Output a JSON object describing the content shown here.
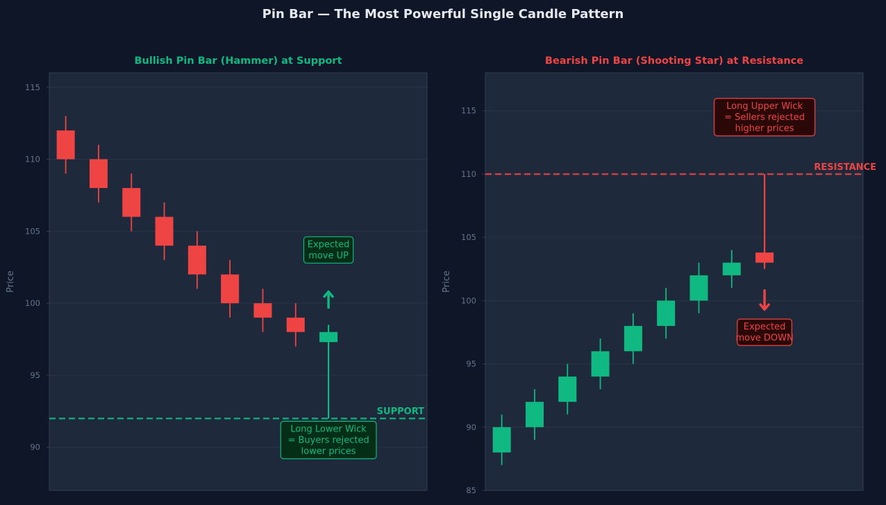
{
  "suptitle": "Pin Bar — The Most Powerful Single Candle Pattern",
  "colors": {
    "background": "#0e1628",
    "panel": "#1e293b",
    "grid": "#2a3548",
    "spine": "#334155",
    "tick": "#64748b",
    "bull": "#10b981",
    "bear": "#ef4444",
    "bull_box_fill": "#052e16",
    "bear_box_fill": "#2a0808"
  },
  "chart_data": [
    {
      "type": "candlestick",
      "title": "Bullish Pin Bar (Hammer) at Support",
      "ylabel": "Price",
      "ylim": [
        87,
        116
      ],
      "yticks": [
        90,
        95,
        100,
        105,
        110,
        115
      ],
      "xlim": [
        -0.5,
        11
      ],
      "grid": true,
      "candles": [
        {
          "x": 0,
          "open": 112,
          "high": 113,
          "low": 109,
          "close": 110
        },
        {
          "x": 1,
          "open": 110,
          "high": 111,
          "low": 107,
          "close": 108
        },
        {
          "x": 2,
          "open": 108,
          "high": 109,
          "low": 105,
          "close": 106
        },
        {
          "x": 3,
          "open": 106,
          "high": 107,
          "low": 103,
          "close": 104
        },
        {
          "x": 4,
          "open": 104,
          "high": 105,
          "low": 101,
          "close": 102
        },
        {
          "x": 5,
          "open": 102,
          "high": 103,
          "low": 99,
          "close": 100
        },
        {
          "x": 6,
          "open": 100,
          "high": 101,
          "low": 98,
          "close": 99
        },
        {
          "x": 7,
          "open": 99,
          "high": 100,
          "low": 97,
          "close": 98
        },
        {
          "x": 8,
          "open": 97.3,
          "high": 98.5,
          "low": 92,
          "close": 98
        }
      ],
      "level": {
        "value": 92,
        "label": "SUPPORT",
        "color": "#10b981"
      },
      "annotations": [
        {
          "lines": [
            "Expected",
            "move UP"
          ],
          "x": 8,
          "y": 103.7,
          "kind": "box",
          "color": "#10b981"
        },
        {
          "lines": [
            "Long Lower Wick",
            "= Buyers rejected",
            "lower prices"
          ],
          "x": 8,
          "y": 90.5,
          "kind": "box",
          "color": "#10b981"
        },
        {
          "kind": "arrow",
          "x": 8,
          "y_from": 99.7,
          "y_to": 100.8,
          "color": "#10b981"
        }
      ]
    },
    {
      "type": "candlestick",
      "title": "Bearish Pin Bar (Shooting Star) at Resistance",
      "ylabel": "Price",
      "ylim": [
        85,
        118
      ],
      "yticks": [
        85,
        90,
        95,
        100,
        105,
        110,
        115
      ],
      "xlim": [
        -0.5,
        11
      ],
      "grid": true,
      "candles": [
        {
          "x": 0,
          "open": 88,
          "high": 91,
          "low": 87,
          "close": 90
        },
        {
          "x": 1,
          "open": 90,
          "high": 93,
          "low": 89,
          "close": 92
        },
        {
          "x": 2,
          "open": 92,
          "high": 95,
          "low": 91,
          "close": 94
        },
        {
          "x": 3,
          "open": 94,
          "high": 97,
          "low": 93,
          "close": 96
        },
        {
          "x": 4,
          "open": 96,
          "high": 99,
          "low": 95,
          "close": 98
        },
        {
          "x": 5,
          "open": 98,
          "high": 101,
          "low": 97,
          "close": 100
        },
        {
          "x": 6,
          "open": 100,
          "high": 103,
          "low": 99,
          "close": 102
        },
        {
          "x": 7,
          "open": 102,
          "high": 104,
          "low": 101,
          "close": 103
        },
        {
          "x": 8,
          "open": 103.8,
          "high": 110,
          "low": 102.5,
          "close": 103
        }
      ],
      "level": {
        "value": 110,
        "label": "RESISTANCE",
        "color": "#ef4444"
      },
      "annotations": [
        {
          "lines": [
            "Long Upper Wick",
            "= Sellers rejected",
            "higher prices"
          ],
          "x": 8,
          "y": 114.5,
          "kind": "box",
          "color": "#ef4444"
        },
        {
          "lines": [
            "Expected",
            "move DOWN"
          ],
          "x": 8,
          "y": 97.5,
          "kind": "box",
          "color": "#ef4444"
        },
        {
          "kind": "arrow",
          "x": 8,
          "y_from": 100.8,
          "y_to": 99.3,
          "color": "#ef4444"
        }
      ]
    }
  ]
}
